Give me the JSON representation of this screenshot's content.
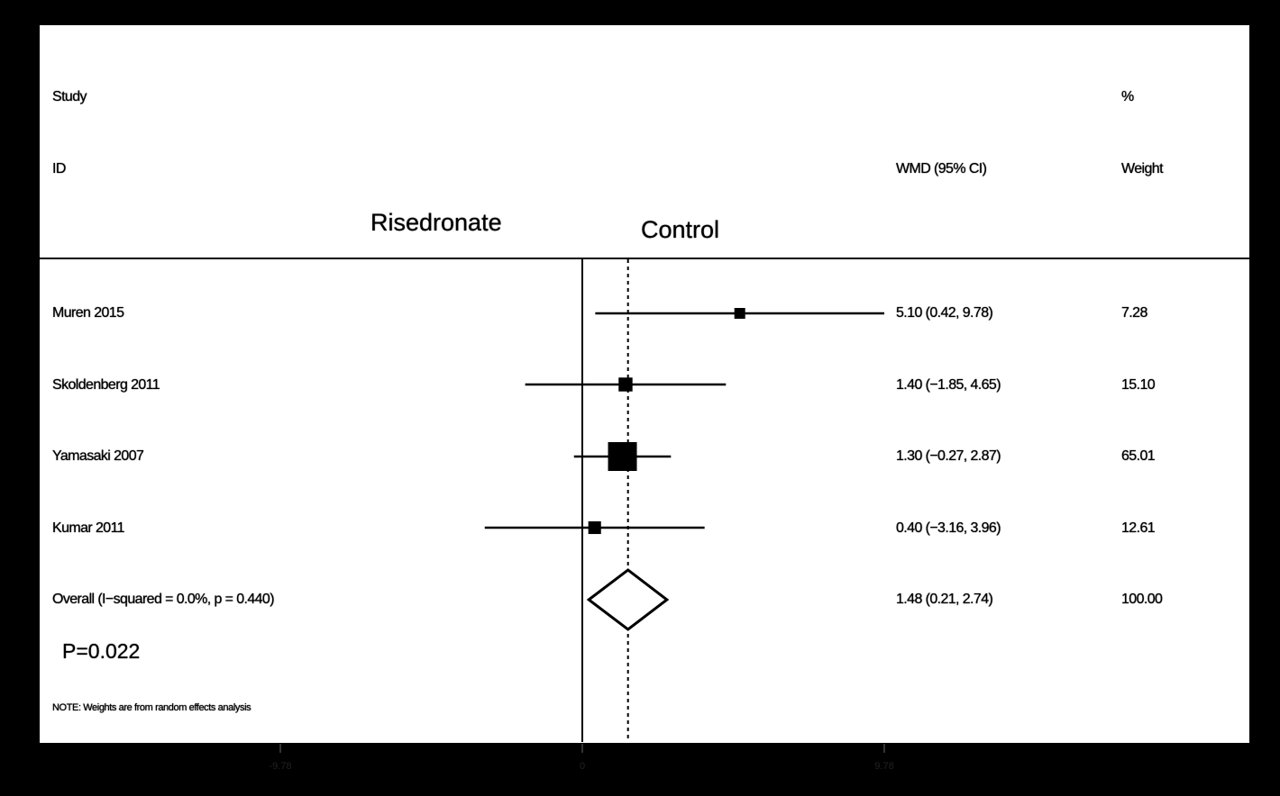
{
  "header": {
    "study": "Study",
    "id": "ID",
    "effect": "WMD (95% CI)",
    "pct": "%",
    "weight": "Weight"
  },
  "groups": {
    "left": "Risedronate",
    "right": "Control"
  },
  "chart_data": {
    "type": "forest",
    "xlim": [
      -9.78,
      9.78
    ],
    "ticks": [
      {
        "value": -9.78,
        "label": "-9.78"
      },
      {
        "value": 0,
        "label": "0"
      },
      {
        "value": 9.78,
        "label": "9.78"
      }
    ],
    "reference_line": 0,
    "overall_line": 1.48,
    "studies": [
      {
        "name": "Muren 2015",
        "estimate": 5.1,
        "lower": 0.42,
        "upper": 9.78,
        "ci_text": "5.10 (0.42, 9.78)",
        "weight": 7.28,
        "weight_text": "7.28"
      },
      {
        "name": "Skoldenberg 2011",
        "estimate": 1.4,
        "lower": -1.85,
        "upper": 4.65,
        "ci_text": "1.40 (−1.85, 4.65)",
        "weight": 15.1,
        "weight_text": "15.10"
      },
      {
        "name": "Yamasaki 2007",
        "estimate": 1.3,
        "lower": -0.27,
        "upper": 2.87,
        "ci_text": "1.30 (−0.27, 2.87)",
        "weight": 65.01,
        "weight_text": "65.01"
      },
      {
        "name": "Kumar 2011",
        "estimate": 0.4,
        "lower": -3.16,
        "upper": 3.96,
        "ci_text": "0.40 (−3.16, 3.96)",
        "weight": 12.61,
        "weight_text": "12.61"
      }
    ],
    "overall": {
      "name": "Overall  (I−squared = 0.0%, p = 0.440)",
      "estimate": 1.48,
      "lower": 0.21,
      "upper": 2.74,
      "ci_text": "1.48 (0.21, 2.74)",
      "weight_text": "100.00"
    }
  },
  "p_value": "P=0.022",
  "note": "NOTE: Weights are from random effects analysis"
}
